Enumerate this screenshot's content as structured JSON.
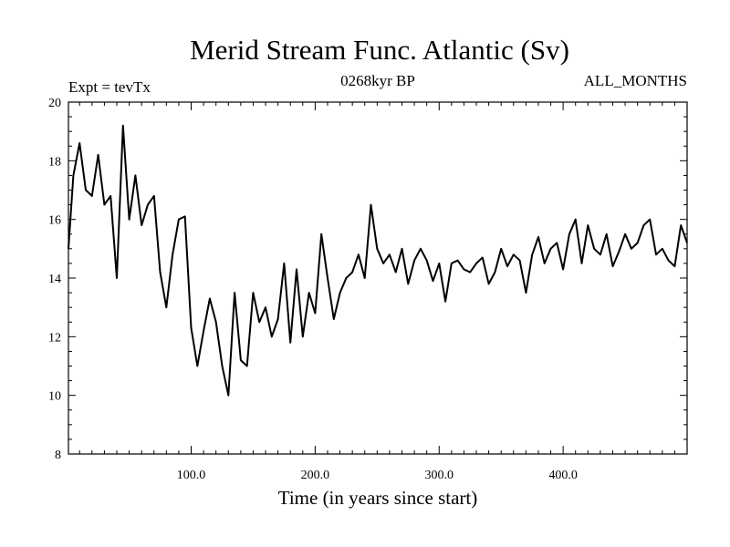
{
  "chart_data": {
    "type": "line",
    "title": "Merid Stream Func. Atlantic (Sv)",
    "subtitle_left": "Expt = tevTx",
    "subtitle_center": "0268kyr BP",
    "subtitle_right": "ALL_MONTHS",
    "xlabel": "Time (in years since start)",
    "ylabel": "",
    "xlim": [
      1,
      500
    ],
    "ylim": [
      8,
      20
    ],
    "xticks": [
      100,
      200,
      300,
      400
    ],
    "xtick_labels": [
      "100.0",
      "200.0",
      "300.0",
      "400.0"
    ],
    "yticks": [
      8,
      10,
      12,
      14,
      16,
      18,
      20
    ],
    "ytick_labels": [
      "8",
      "10",
      "12",
      "14",
      "16",
      "18",
      "20"
    ],
    "grid": false,
    "legend": "none",
    "series": [
      {
        "color": "#000000",
        "x": [
          1,
          5,
          10,
          15,
          20,
          25,
          30,
          35,
          40,
          45,
          50,
          55,
          60,
          65,
          70,
          75,
          80,
          85,
          90,
          95,
          100,
          105,
          110,
          115,
          120,
          125,
          130,
          135,
          140,
          145,
          150,
          155,
          160,
          165,
          170,
          175,
          180,
          185,
          190,
          195,
          200,
          205,
          210,
          215,
          220,
          225,
          230,
          235,
          240,
          245,
          250,
          255,
          260,
          265,
          270,
          275,
          280,
          285,
          290,
          295,
          300,
          305,
          310,
          315,
          320,
          325,
          330,
          335,
          340,
          345,
          350,
          355,
          360,
          365,
          370,
          375,
          380,
          385,
          390,
          395,
          400,
          405,
          410,
          415,
          420,
          425,
          430,
          435,
          440,
          445,
          450,
          455,
          460,
          465,
          470,
          475,
          480,
          485,
          490,
          495,
          500
        ],
        "y": [
          15.0,
          17.5,
          18.6,
          17.0,
          16.8,
          18.2,
          16.5,
          16.8,
          14.0,
          19.2,
          16.0,
          17.5,
          15.8,
          16.5,
          16.8,
          14.2,
          13.0,
          14.8,
          16.0,
          16.1,
          12.3,
          11.0,
          12.2,
          13.3,
          12.5,
          11.0,
          10.0,
          13.5,
          11.2,
          11.0,
          13.5,
          12.5,
          13.0,
          12.0,
          12.6,
          14.5,
          11.8,
          14.3,
          12.0,
          13.5,
          12.8,
          15.5,
          14.0,
          12.6,
          13.5,
          14.0,
          14.2,
          14.8,
          14.0,
          16.5,
          15.0,
          14.5,
          14.8,
          14.2,
          15.0,
          13.8,
          14.6,
          15.0,
          14.6,
          13.9,
          14.5,
          13.2,
          14.5,
          14.6,
          14.3,
          14.2,
          14.5,
          14.7,
          13.8,
          14.2,
          15.0,
          14.4,
          14.8,
          14.6,
          13.5,
          14.8,
          15.4,
          14.5,
          15.0,
          15.2,
          14.3,
          15.5,
          16.0,
          14.5,
          15.8,
          15.0,
          14.8,
          15.5,
          14.4,
          14.9,
          15.5,
          15.0,
          15.2,
          15.8,
          16.0,
          14.8,
          15.0,
          14.6,
          14.4,
          15.8,
          15.2
        ]
      }
    ]
  }
}
